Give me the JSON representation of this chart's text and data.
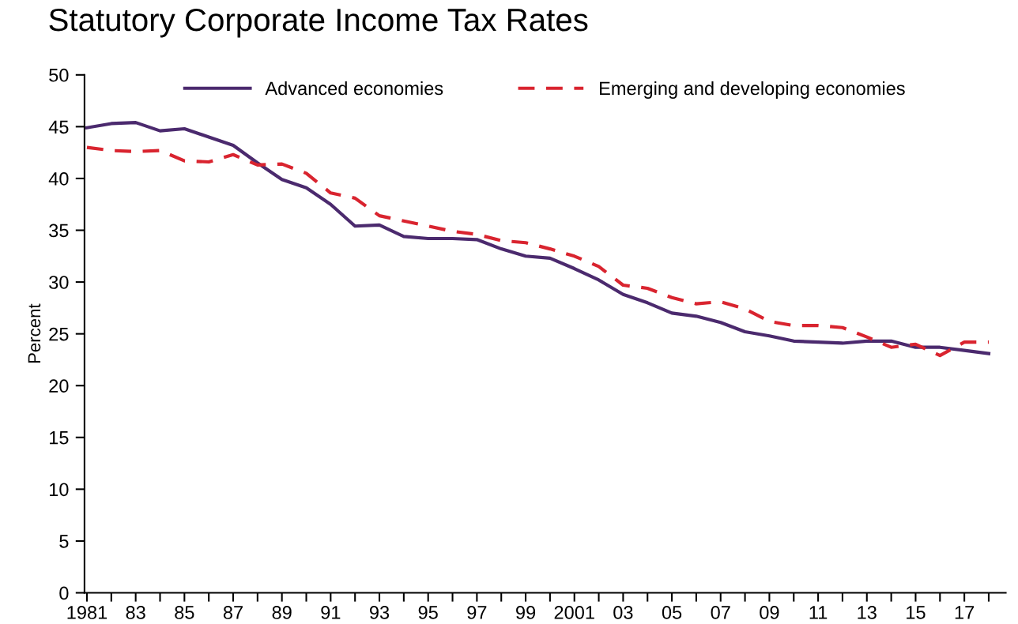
{
  "chart_data": {
    "type": "line",
    "title": "Statutory Corporate Income Tax Rates",
    "ylabel": "Percent",
    "x": [
      1981,
      1982,
      1983,
      1984,
      1985,
      1986,
      1987,
      1988,
      1989,
      1990,
      1991,
      1992,
      1993,
      1994,
      1995,
      1996,
      1997,
      1998,
      1999,
      2000,
      2001,
      2002,
      2003,
      2004,
      2005,
      2006,
      2007,
      2008,
      2009,
      2010,
      2011,
      2012,
      2013,
      2014,
      2015,
      2016,
      2017,
      2018
    ],
    "series": [
      {
        "name": "Advanced economies",
        "color": "#4b2a6e",
        "line_style": "solid",
        "values": [
          44.9,
          45.3,
          45.4,
          44.6,
          44.8,
          44.0,
          43.2,
          41.5,
          39.9,
          39.1,
          37.5,
          35.4,
          35.5,
          34.4,
          34.2,
          34.2,
          34.1,
          33.2,
          32.5,
          32.3,
          31.3,
          30.2,
          28.8,
          28.0,
          27.0,
          26.7,
          26.1,
          25.2,
          24.8,
          24.3,
          24.2,
          24.1,
          24.3,
          24.3,
          23.7,
          23.7,
          23.4,
          23.1
        ]
      },
      {
        "name": "Emerging and developing economies",
        "color": "#d9242f",
        "line_style": "dashed",
        "values": [
          43.0,
          42.7,
          42.6,
          42.7,
          41.7,
          41.6,
          42.3,
          41.3,
          41.4,
          40.5,
          38.6,
          38.1,
          36.4,
          35.9,
          35.4,
          34.9,
          34.6,
          34.0,
          33.8,
          33.2,
          32.5,
          31.5,
          29.7,
          29.4,
          28.5,
          27.9,
          28.1,
          27.4,
          26.2,
          25.8,
          25.8,
          25.6,
          24.7,
          23.7,
          24.0,
          22.9,
          24.2,
          24.2
        ]
      }
    ],
    "xlim": [
      1980.9,
      2018.7
    ],
    "xticks": [
      {
        "value": 1981,
        "label": "1981"
      },
      {
        "value": 1982,
        "label": null
      },
      {
        "value": 1983,
        "label": "83"
      },
      {
        "value": 1984,
        "label": null
      },
      {
        "value": 1985,
        "label": "85"
      },
      {
        "value": 1986,
        "label": null
      },
      {
        "value": 1987,
        "label": "87"
      },
      {
        "value": 1988,
        "label": null
      },
      {
        "value": 1989,
        "label": "89"
      },
      {
        "value": 1990,
        "label": null
      },
      {
        "value": 1991,
        "label": "91"
      },
      {
        "value": 1992,
        "label": null
      },
      {
        "value": 1993,
        "label": "93"
      },
      {
        "value": 1994,
        "label": null
      },
      {
        "value": 1995,
        "label": "95"
      },
      {
        "value": 1996,
        "label": null
      },
      {
        "value": 1997,
        "label": "97"
      },
      {
        "value": 1998,
        "label": null
      },
      {
        "value": 1999,
        "label": "99"
      },
      {
        "value": 2000,
        "label": null
      },
      {
        "value": 2001,
        "label": "2001"
      },
      {
        "value": 2002,
        "label": null
      },
      {
        "value": 2003,
        "label": "03"
      },
      {
        "value": 2004,
        "label": null
      },
      {
        "value": 2005,
        "label": "05"
      },
      {
        "value": 2006,
        "label": null
      },
      {
        "value": 2007,
        "label": "07"
      },
      {
        "value": 2008,
        "label": null
      },
      {
        "value": 2009,
        "label": "09"
      },
      {
        "value": 2010,
        "label": null
      },
      {
        "value": 2011,
        "label": "11"
      },
      {
        "value": 2012,
        "label": null
      },
      {
        "value": 2013,
        "label": "13"
      },
      {
        "value": 2014,
        "label": null
      },
      {
        "value": 2015,
        "label": "15"
      },
      {
        "value": 2016,
        "label": null
      },
      {
        "value": 2017,
        "label": "17"
      },
      {
        "value": 2018,
        "label": null
      }
    ],
    "ylim": [
      0,
      50
    ],
    "yticks": [
      0,
      5,
      10,
      15,
      20,
      25,
      30,
      35,
      40,
      45,
      50
    ],
    "grid": false,
    "legend": "top",
    "marker": "none"
  }
}
